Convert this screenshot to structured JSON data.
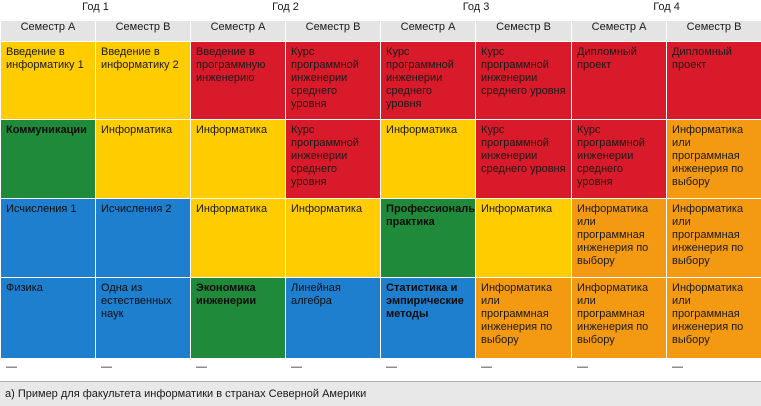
{
  "years": [
    "Год 1",
    "Год 2",
    "Год 3",
    "Год 4"
  ],
  "semesters": [
    "Семестр А",
    "Семестр В",
    "Семестр А",
    "Семестр В",
    "Семестр А",
    "Семестр В",
    "Семестр А",
    "Семестр В"
  ],
  "rows": [
    [
      {
        "text": "Введение в информатику 1",
        "color": "yellow",
        "bold": false
      },
      {
        "text": "Введение в информатику 2",
        "color": "yellow",
        "bold": false
      },
      {
        "text": "Введение в программную инженерию",
        "color": "red",
        "bold": false
      },
      {
        "text": "Курс программной инженерии среднего уровня",
        "color": "red",
        "bold": false
      },
      {
        "text": "Курс программной инженерии среднего уровня",
        "color": "red",
        "bold": false
      },
      {
        "text": "Курс программной инженерии среднего уровня",
        "color": "red",
        "bold": false
      },
      {
        "text": "Дипломный проект",
        "color": "red",
        "bold": false
      },
      {
        "text": "Дипломный проект",
        "color": "red",
        "bold": false
      }
    ],
    [
      {
        "text": "Коммуникации",
        "color": "green",
        "bold": true
      },
      {
        "text": "Информатика",
        "color": "yellow",
        "bold": false
      },
      {
        "text": "Информатика",
        "color": "yellow",
        "bold": false
      },
      {
        "text": "Курс программной инженерии среднего уровня",
        "color": "red",
        "bold": false
      },
      {
        "text": "Информатика",
        "color": "yellow",
        "bold": false
      },
      {
        "text": "Курс программной инженерии среднего уровня",
        "color": "red",
        "bold": false
      },
      {
        "text": "Курс программной инженерии среднего уровня",
        "color": "red",
        "bold": false
      },
      {
        "text": "Информатика или программная инженерия по выбору",
        "color": "orange",
        "bold": false
      }
    ],
    [
      {
        "text": "Исчисления 1",
        "color": "blue",
        "bold": false
      },
      {
        "text": "Исчисления 2",
        "color": "blue",
        "bold": false
      },
      {
        "text": "Информатика",
        "color": "yellow",
        "bold": false
      },
      {
        "text": "Информатика",
        "color": "yellow",
        "bold": false
      },
      {
        "text": "Профессиональная практика",
        "color": "green",
        "bold": true
      },
      {
        "text": "Информатика",
        "color": "yellow",
        "bold": false
      },
      {
        "text": "Информатика или программная инженерия по выбору",
        "color": "orange",
        "bold": false
      },
      {
        "text": "Информатика или программная инженерия по выбору",
        "color": "orange",
        "bold": false
      }
    ],
    [
      {
        "text": "Физика",
        "color": "blue",
        "bold": false
      },
      {
        "text": "Одна из естественных наук",
        "color": "blue",
        "bold": false
      },
      {
        "text": "Экономика инженерии",
        "color": "green",
        "bold": true
      },
      {
        "text": "Линейная алгебра",
        "color": "blue",
        "bold": false
      },
      {
        "text": "Статистика и эмпирические методы",
        "color": "blue",
        "bold": true
      },
      {
        "text": "Информатика или программная инженерия по выбору",
        "color": "orange",
        "bold": false
      },
      {
        "text": "Информатика или программная инженерия по выбору",
        "color": "orange",
        "bold": false
      },
      {
        "text": "Информатика или программная инженерия по выбору",
        "color": "orange",
        "bold": false
      }
    ]
  ],
  "empty_row": [
    "—",
    "—",
    "—",
    "—",
    "—",
    "—",
    "—",
    "—"
  ],
  "footnote": "а) Пример для факультета информатики в странах Северной Америки",
  "colors": {
    "yellow": "#ffcc00",
    "red": "#d91a2a",
    "green": "#1e8a3a",
    "blue": "#1f7fcf",
    "orange": "#f39a12"
  }
}
